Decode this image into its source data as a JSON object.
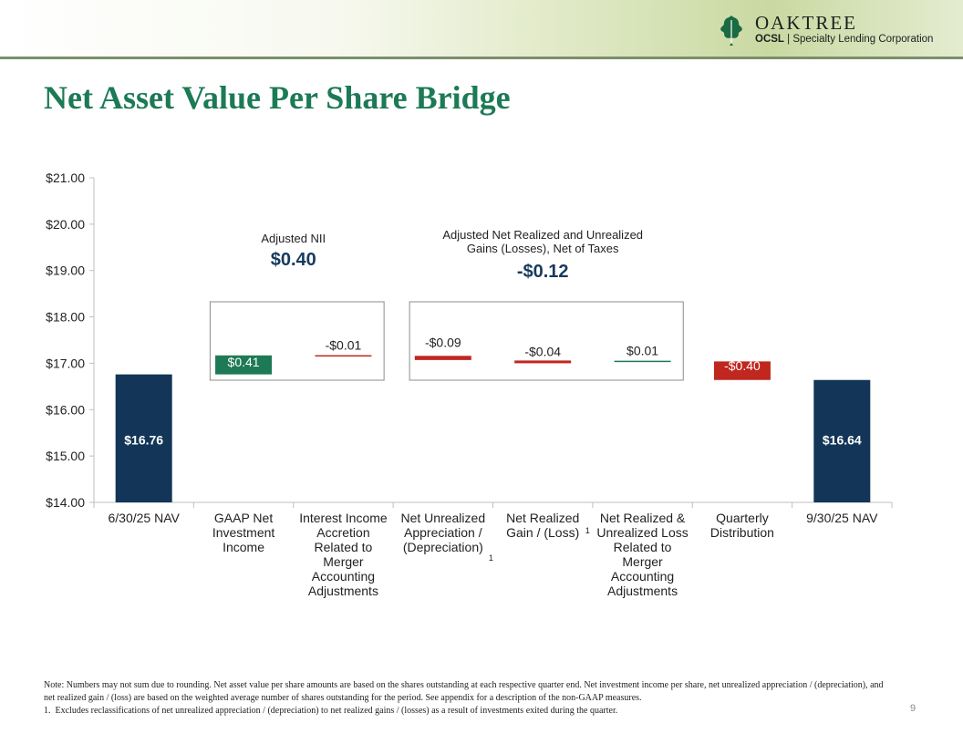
{
  "header": {
    "brand": "OAKTREE",
    "ticker": "OCSL",
    "subtitle": "Specialty Lending Corporation"
  },
  "title": "Net Asset Value Per Share Bridge",
  "chart_data": {
    "type": "bar",
    "subtype": "waterfall",
    "y_tick_labels": [
      "$14.00",
      "$15.00",
      "$16.00",
      "$17.00",
      "$18.00",
      "$19.00",
      "$20.00",
      "$21.00"
    ],
    "ylim": [
      14,
      21
    ],
    "categories": [
      "6/30/25 NAV",
      "GAAP Net Investment Income",
      "Interest Income Accretion Related to Merger Accounting Adjustments",
      "Net Unrealized Appreciation / (Depreciation)",
      "Net Realized Gain / (Loss)",
      "Net Realized & Unrealized Loss Related to Merger Accounting Adjustments",
      "Quarterly Distribution",
      "9/30/25 NAV"
    ],
    "category_lines": [
      [
        "6/30/25 NAV"
      ],
      [
        "GAAP Net",
        "Investment",
        "Income"
      ],
      [
        "Interest Income",
        "Accretion",
        "Related to",
        "Merger",
        "Accounting",
        "Adjustments"
      ],
      [
        "Net Unrealized",
        "Appreciation /",
        "(Depreciation)"
      ],
      [
        "Net Realized",
        "Gain / (Loss)"
      ],
      [
        "Net Realized &",
        "Unrealized Loss",
        "Related to",
        "Merger",
        "Accounting",
        "Adjustments"
      ],
      [
        "Quarterly",
        "Distribution"
      ],
      [
        "9/30/25 NAV"
      ]
    ],
    "category_footnotes": [
      "",
      "",
      "",
      "1",
      "1",
      "",
      "",
      ""
    ],
    "bars": [
      {
        "kind": "total",
        "start": 14.0,
        "end": 16.76,
        "label": "$16.76",
        "color": "#123558"
      },
      {
        "kind": "increase",
        "start": 16.76,
        "end": 17.17,
        "label": "$0.41",
        "color": "#1e7a56"
      },
      {
        "kind": "decrease",
        "start": 17.17,
        "end": 17.16,
        "label": "-$0.01",
        "color": "#c0271f"
      },
      {
        "kind": "decrease",
        "start": 17.16,
        "end": 17.07,
        "label": "-$0.09",
        "color": "#c0271f"
      },
      {
        "kind": "decrease",
        "start": 17.07,
        "end": 17.03,
        "label": "-$0.04",
        "color": "#c0271f"
      },
      {
        "kind": "increase",
        "start": 17.03,
        "end": 17.04,
        "label": "$0.01",
        "color": "#1e7a56"
      },
      {
        "kind": "decrease",
        "start": 17.04,
        "end": 16.64,
        "label": "-$0.40",
        "color": "#c0271f"
      },
      {
        "kind": "total",
        "start": 14.0,
        "end": 16.64,
        "label": "$16.64",
        "color": "#123558"
      }
    ],
    "annotations": [
      {
        "caption_lines": [
          "Adjusted NII"
        ],
        "value": "$0.40",
        "spans": [
          1,
          2
        ]
      },
      {
        "caption_lines": [
          "Adjusted Net Realized and Unrealized",
          "Gains (Losses), Net of Taxes"
        ],
        "value": "-$0.12",
        "spans": [
          3,
          5
        ]
      }
    ]
  },
  "notes": [
    "Note: Numbers may not sum due to rounding. Net asset value per share amounts are based on the shares outstanding at each respective quarter end. Net investment income per share, net unrealized appreciation / (depreciation), and net realized gain / (loss) are based on the weighted average number of shares outstanding for the period. See appendix for a description of the non-GAAP measures.",
    "1.  Excludes reclassifications of net unrealized appreciation / (depreciation) to net realized gains / (losses) as a result of investments exited during the quarter."
  ],
  "page_number": "9",
  "colors": {
    "title": "#1c7a55",
    "navy": "#123558",
    "green": "#1e7a56",
    "red": "#c0271f"
  }
}
